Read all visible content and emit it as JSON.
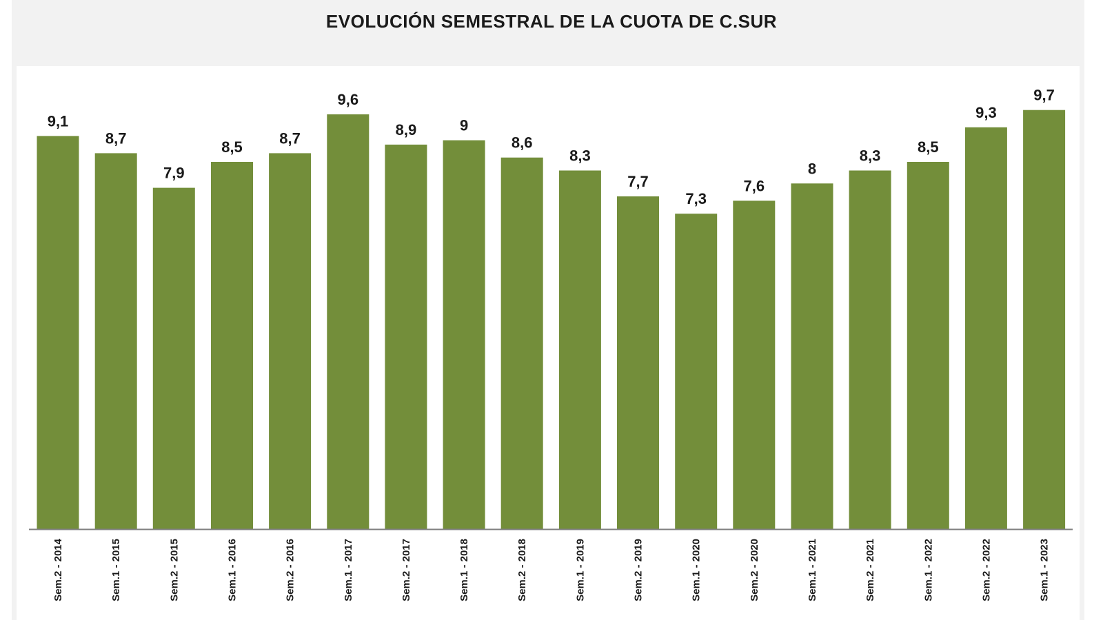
{
  "chart_data": {
    "type": "bar",
    "title": "EVOLUCIÓN SEMESTRAL DE LA CUOTA DE C.SUR",
    "xlabel": "",
    "ylabel": "",
    "categories": [
      "Sem.2 - 2014",
      "Sem.1 - 2015",
      "Sem.2 - 2015",
      "Sem.1 - 2016",
      "Sem.2 - 2016",
      "Sem.1 - 2017",
      "Sem.2 - 2017",
      "Sem.1 - 2018",
      "Sem.2 - 2018",
      "Sem.1 - 2019",
      "Sem.2 - 2019",
      "Sem.1 - 2020",
      "Sem.2 - 2020",
      "Sem.1 - 2021",
      "Sem.2 - 2021",
      "Sem.1 - 2022",
      "Sem.2 - 2022",
      "Sem.1 - 2023"
    ],
    "values": [
      9.1,
      8.7,
      7.9,
      8.5,
      8.7,
      9.6,
      8.9,
      9,
      8.6,
      8.3,
      7.7,
      7.3,
      7.6,
      8,
      8.3,
      8.5,
      9.3,
      9.7
    ],
    "data_labels": [
      "9,1",
      "8,7",
      "7,9",
      "8,5",
      "8,7",
      "9,6",
      "8,9",
      "9",
      "8,6",
      "8,3",
      "7,7",
      "7,3",
      "7,6",
      "8",
      "8,3",
      "8,5",
      "9,3",
      "9,7"
    ],
    "bar_color": "#738e3a",
    "axis_color": "#7f7f7f",
    "grid": false,
    "legend": "none",
    "ylim": [
      0,
      10.5
    ]
  }
}
